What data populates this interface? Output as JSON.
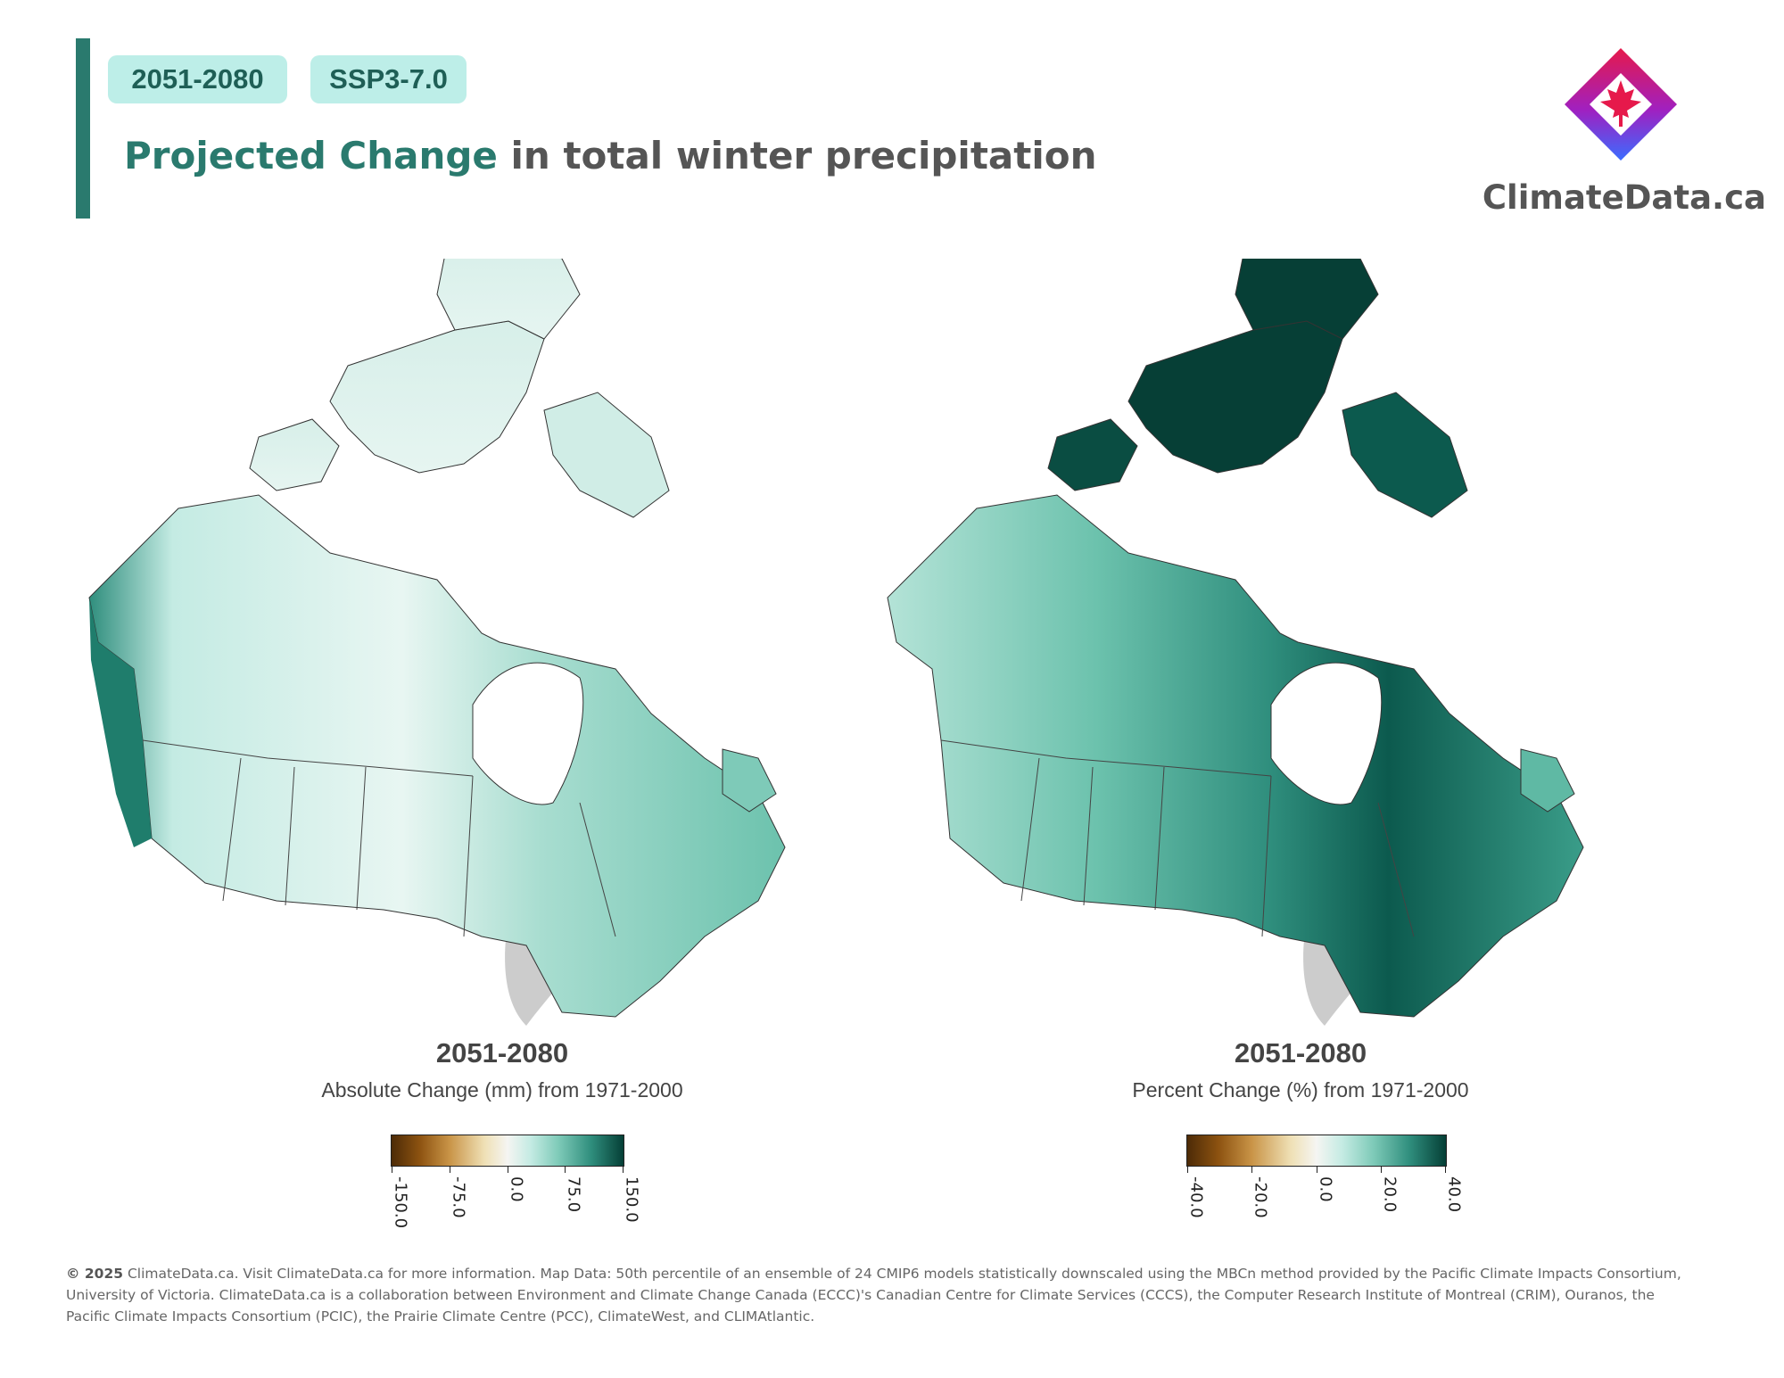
{
  "header": {
    "period_tag": "2051-2080",
    "scenario_tag": "SSP3-7.0",
    "title_accent": "Projected Change",
    "title_rest": " in total  winter precipitation"
  },
  "brand": {
    "name": "ClimateData.ca",
    "logo_icon": "maple-leaf-diamond-logo",
    "logo_colors": [
      "#e6194b",
      "#8a2be2",
      "#3b6cff"
    ]
  },
  "maps": [
    {
      "period": "2051-2080",
      "subtitle": "Absolute Change (mm) from 1971-2000",
      "variable": "absolute change",
      "colorbar": {
        "min": -150.0,
        "max": 150.0,
        "ticks": [
          "-150.0",
          "-75.0",
          "0.0",
          "75.0",
          "150.0"
        ],
        "tick_values": [
          -150,
          -75,
          0,
          75,
          150
        ]
      }
    },
    {
      "period": "2051-2080",
      "subtitle": "Percent Change (%) from 1971-2000",
      "variable": "percent change",
      "colorbar": {
        "min": -40.0,
        "max": 40.0,
        "ticks": [
          "-40.0",
          "-20.0",
          "0.0",
          "20.0",
          "40.0"
        ],
        "tick_values": [
          -40,
          -20,
          0,
          20,
          40
        ]
      }
    }
  ],
  "colors": {
    "accent": "#2a7a6e",
    "tag_bg": "#bdeee8",
    "diverging_low": "#4d2b07",
    "diverging_mid": "#f5f5f2",
    "diverging_high": "#053f36"
  },
  "footer": {
    "copyright": "© 2025",
    "text": " ClimateData.ca. Visit ClimateData.ca for more information. Map Data: 50th percentile of an ensemble of 24 CMIP6 models statistically downscaled using the MBCn method provided by the Pacific Climate Impacts Consortium, University of Victoria. ClimateData.ca is a collaboration between Environment and Climate Change Canada (ECCC)'s Canadian Centre for Climate Services (CCCS), the Computer Research Institute of Montreal (CRIM), Ouranos, the Pacific Climate Impacts Consortium (PCIC), the Prairie Climate Centre (PCC), ClimateWest, and CLIMAtlantic."
  }
}
